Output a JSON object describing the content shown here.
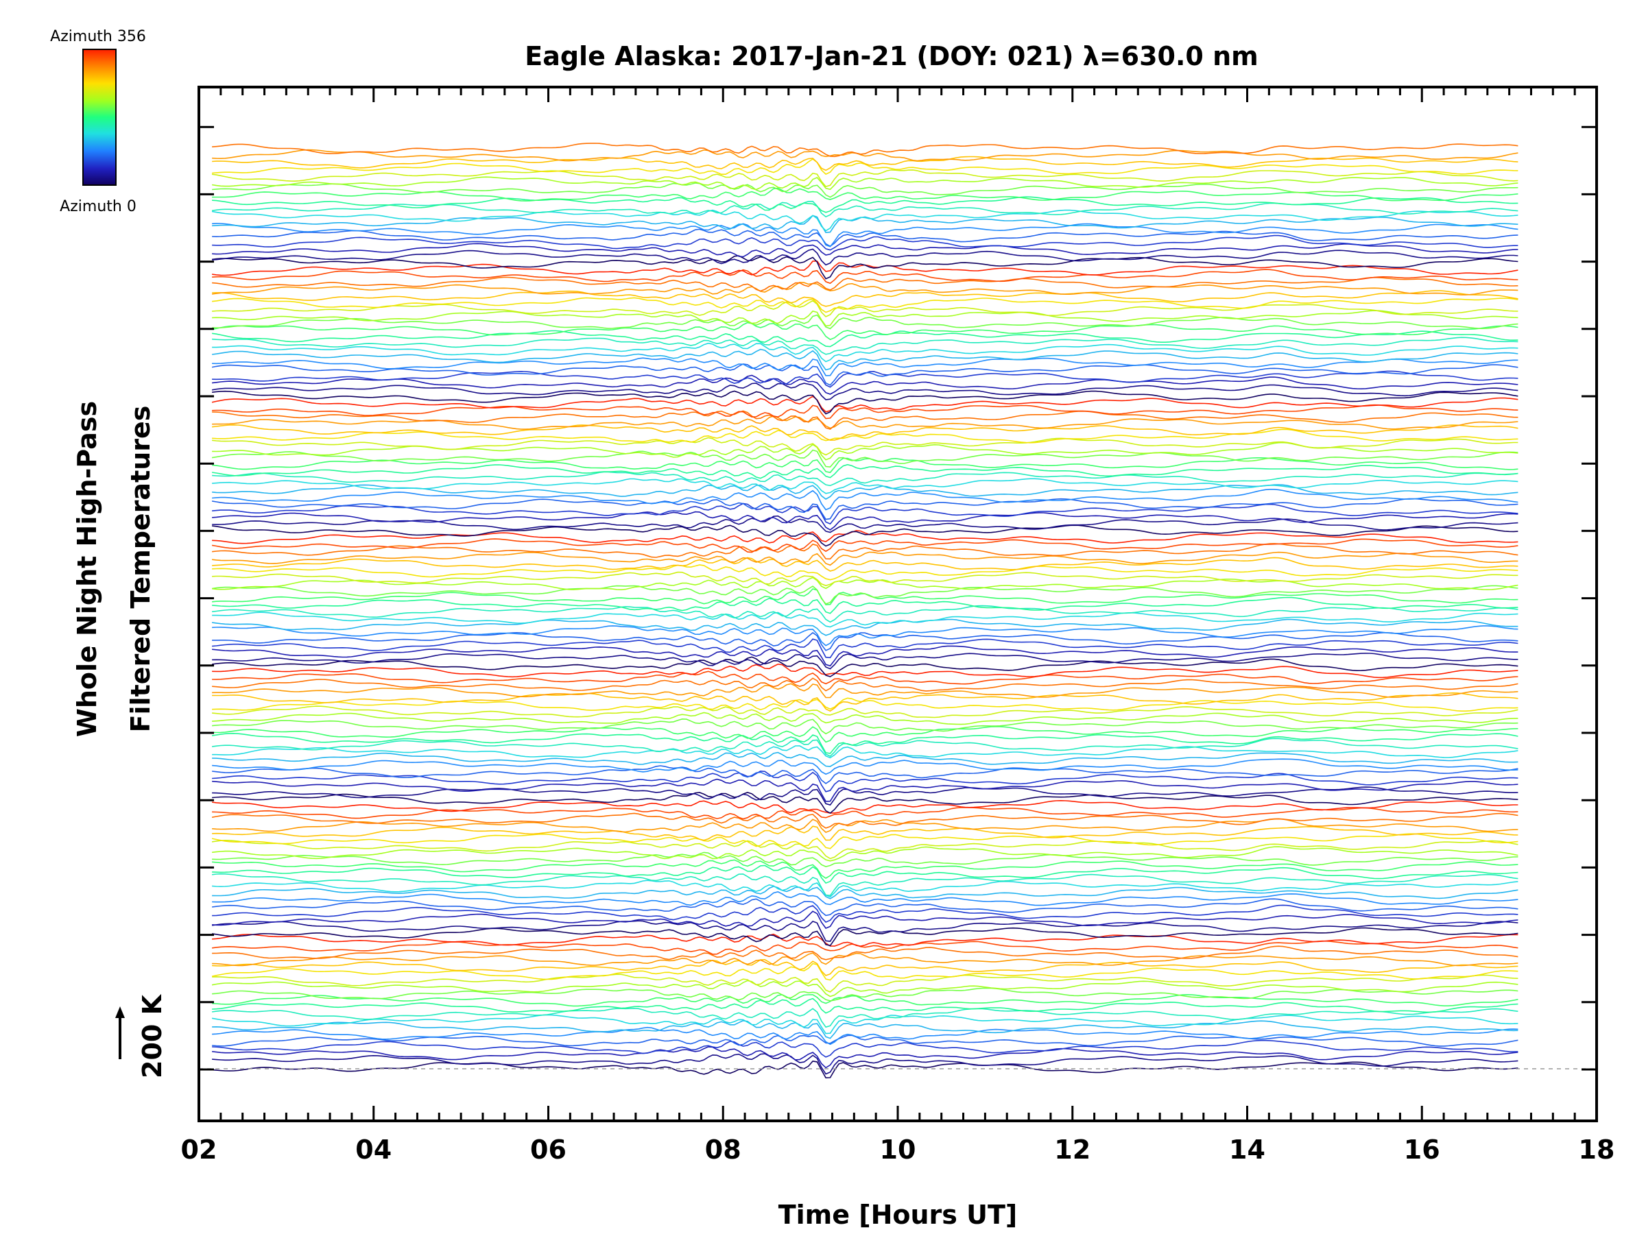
{
  "chart_data": {
    "type": "line",
    "title": "Eagle Alaska: 2017-Jan-21 (DOY: 021) λ=630.0 nm",
    "xlabel": "Time [Hours UT]",
    "ylabel_line1": "Whole Night High-Pass",
    "ylabel_line2": "Filtered Temperatures",
    "xlim": [
      2,
      18
    ],
    "x_ticks": [
      "02",
      "04",
      "06",
      "08",
      "10",
      "12",
      "14",
      "16",
      "18"
    ],
    "data_x_range": [
      2.15,
      17.1
    ],
    "scale_bar_label": "200 K",
    "colorbar": {
      "top_label": "Azimuth 356",
      "bottom_label": "Azimuth 0",
      "colors": [
        "#ff2000",
        "#ff8000",
        "#ffe000",
        "#a0ff20",
        "#20ff80",
        "#20e0e0",
        "#2080ff",
        "#2020c0",
        "#100060"
      ]
    },
    "stacked_traces": {
      "count": 138,
      "azimuth_cycles": 7,
      "notable_features": [
        {
          "x": 9.2,
          "description": "strong dip/spike at all azimuths"
        }
      ]
    }
  }
}
